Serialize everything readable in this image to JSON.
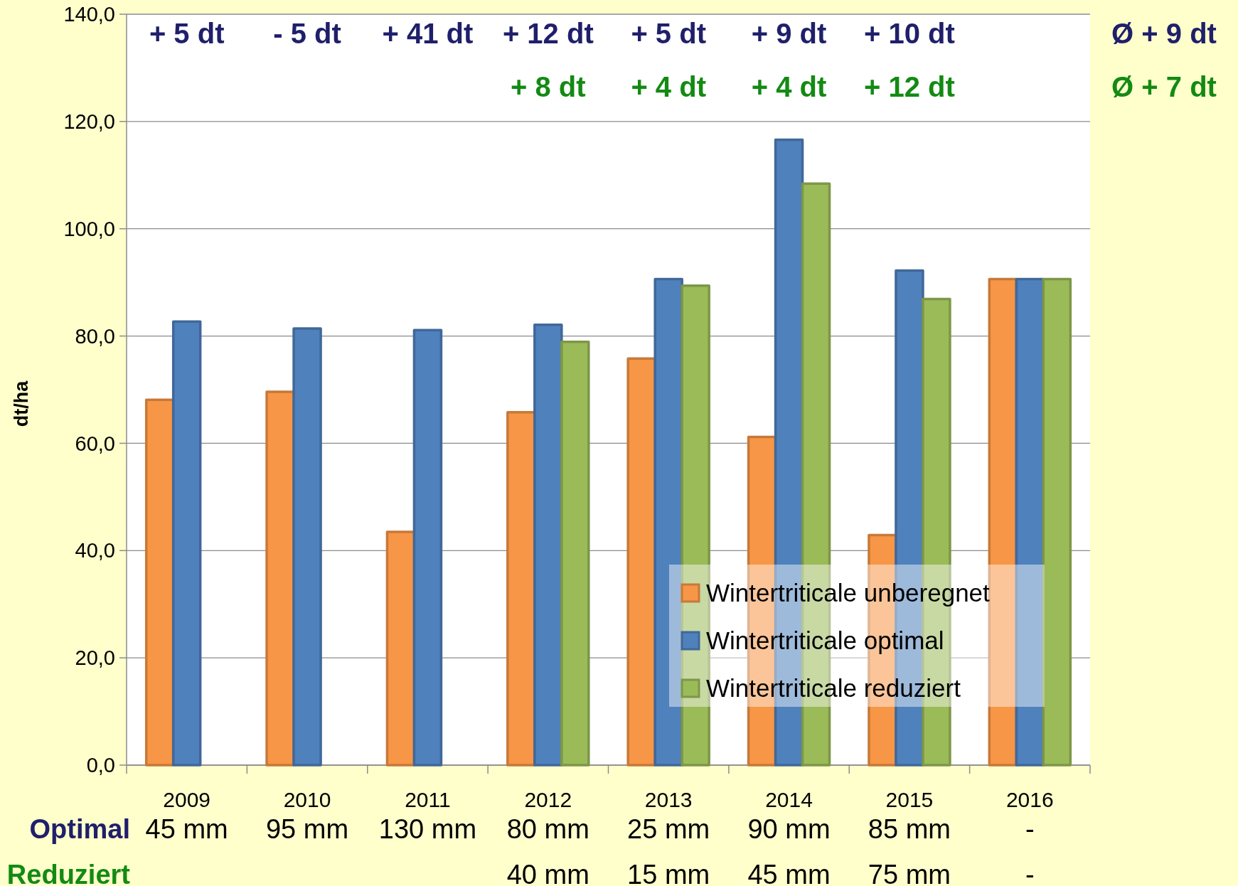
{
  "chart_data": {
    "type": "bar",
    "ylabel": "dt/ha",
    "categories": [
      "2009",
      "2010",
      "2011",
      "2012",
      "2013",
      "2014",
      "2015",
      "2016"
    ],
    "series": [
      {
        "name": "Wintertriticale unberegnet",
        "color": "#f79646",
        "values": [
          68.1,
          69.6,
          43.5,
          65.8,
          75.8,
          61.2,
          42.9,
          90.6
        ]
      },
      {
        "name": "Wintertriticale optimal",
        "color": "#4f81bd",
        "values": [
          82.7,
          81.4,
          81.1,
          82.1,
          90.6,
          116.6,
          92.2,
          90.6
        ]
      },
      {
        "name": "Wintertriticale reduziert",
        "color": "#9bbb59",
        "values": [
          null,
          null,
          null,
          78.9,
          89.4,
          108.4,
          86.9,
          90.6
        ]
      }
    ],
    "ylim": [
      0,
      140
    ],
    "yticks": [
      {
        "value": 0,
        "label": "0,0"
      },
      {
        "value": 20,
        "label": "20,0"
      },
      {
        "value": 40,
        "label": "40,0"
      },
      {
        "value": 60,
        "label": "60,0"
      },
      {
        "value": 80,
        "label": "80,0"
      },
      {
        "value": 100,
        "label": "100,0"
      },
      {
        "value": 120,
        "label": "120,0"
      },
      {
        "value": 140,
        "label": "140,0"
      }
    ],
    "grid": "y",
    "legend": "bottom right",
    "annotations": [
      "+ 5 dt",
      "- 5 dt",
      "+ 41 dt",
      "+ 12 dt",
      "+ 5 dt",
      "+ 9 dt",
      "+ 10 dt",
      "Ø + 9 dt",
      "+ 8 dt",
      "+ 4 dt",
      "+ 4 dt",
      "+ 12 dt",
      "Ø + 7 dt",
      "Optimal",
      "45 mm",
      "95 mm",
      "130 mm",
      "80 mm",
      "25 mm",
      "90 mm",
      "85 mm",
      "-",
      "Reduziert",
      "40 mm",
      "15 mm",
      "45 mm",
      "75 mm",
      "-"
    ]
  }
}
